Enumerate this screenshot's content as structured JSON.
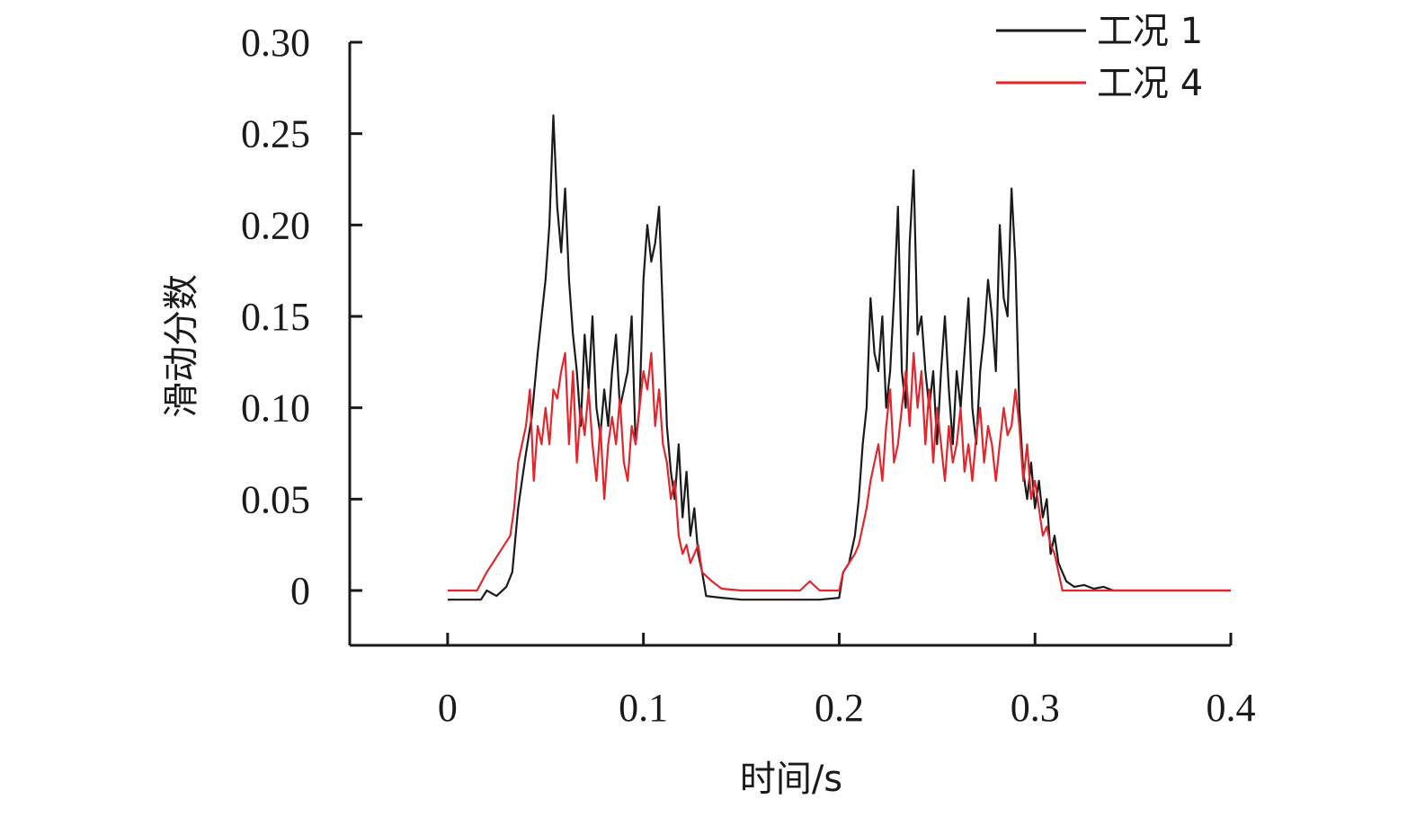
{
  "chart_data": {
    "type": "line",
    "title": "",
    "xlabel": "时间/s",
    "ylabel": "滑动分数",
    "xlim": [
      -0.05,
      0.4
    ],
    "ylim": [
      -0.03,
      0.3
    ],
    "x_ticks": [
      0,
      0.1,
      0.2,
      0.3,
      0.4
    ],
    "x_tick_labels": [
      "0",
      "0.1",
      "0.2",
      "0.3",
      "0.4"
    ],
    "y_ticks": [
      0,
      0.05,
      0.1,
      0.15,
      0.2,
      0.25,
      0.3
    ],
    "y_tick_labels": [
      "0",
      "0.05",
      "0.10",
      "0.15",
      "0.20",
      "0.25",
      "0.30"
    ],
    "legend_position": "top-right",
    "series": [
      {
        "name": "工况 1",
        "color": "#1a1a1a",
        "x": [
          0,
          0.017,
          0.02,
          0.025,
          0.03,
          0.033,
          0.036,
          0.038,
          0.04,
          0.043,
          0.046,
          0.048,
          0.05,
          0.052,
          0.054,
          0.056,
          0.058,
          0.06,
          0.062,
          0.064,
          0.066,
          0.068,
          0.07,
          0.072,
          0.074,
          0.076,
          0.078,
          0.08,
          0.082,
          0.084,
          0.086,
          0.088,
          0.09,
          0.092,
          0.094,
          0.096,
          0.098,
          0.1,
          0.102,
          0.104,
          0.106,
          0.108,
          0.11,
          0.112,
          0.114,
          0.116,
          0.118,
          0.12,
          0.122,
          0.124,
          0.126,
          0.128,
          0.13,
          0.132,
          0.14,
          0.15,
          0.16,
          0.17,
          0.18,
          0.19,
          0.2,
          0.202,
          0.205,
          0.208,
          0.21,
          0.212,
          0.214,
          0.216,
          0.218,
          0.22,
          0.222,
          0.224,
          0.226,
          0.228,
          0.23,
          0.232,
          0.234,
          0.236,
          0.238,
          0.24,
          0.242,
          0.244,
          0.246,
          0.248,
          0.25,
          0.252,
          0.254,
          0.256,
          0.258,
          0.26,
          0.262,
          0.264,
          0.266,
          0.268,
          0.27,
          0.272,
          0.274,
          0.276,
          0.278,
          0.28,
          0.282,
          0.284,
          0.286,
          0.288,
          0.29,
          0.292,
          0.294,
          0.296,
          0.298,
          0.3,
          0.302,
          0.304,
          0.306,
          0.308,
          0.31,
          0.312,
          0.314,
          0.316,
          0.32,
          0.325,
          0.33,
          0.335,
          0.34,
          0.35,
          0.36,
          0.37,
          0.38,
          0.39,
          0.4
        ],
        "y": [
          -0.005,
          -0.005,
          0.0,
          -0.003,
          0.002,
          0.01,
          0.045,
          0.06,
          0.075,
          0.095,
          0.13,
          0.15,
          0.17,
          0.2,
          0.26,
          0.21,
          0.185,
          0.22,
          0.17,
          0.14,
          0.12,
          0.09,
          0.14,
          0.11,
          0.15,
          0.1,
          0.085,
          0.11,
          0.09,
          0.12,
          0.14,
          0.1,
          0.11,
          0.12,
          0.15,
          0.08,
          0.1,
          0.17,
          0.2,
          0.18,
          0.19,
          0.21,
          0.15,
          0.09,
          0.065,
          0.05,
          0.08,
          0.04,
          0.065,
          0.03,
          0.045,
          0.02,
          0.01,
          -0.003,
          -0.004,
          -0.005,
          -0.005,
          -0.005,
          -0.005,
          -0.005,
          -0.004,
          0.01,
          0.015,
          0.03,
          0.05,
          0.08,
          0.1,
          0.16,
          0.13,
          0.12,
          0.15,
          0.1,
          0.12,
          0.16,
          0.21,
          0.12,
          0.1,
          0.19,
          0.23,
          0.14,
          0.15,
          0.12,
          0.1,
          0.12,
          0.08,
          0.12,
          0.15,
          0.11,
          0.08,
          0.12,
          0.1,
          0.13,
          0.16,
          0.1,
          0.08,
          0.12,
          0.14,
          0.17,
          0.15,
          0.12,
          0.2,
          0.16,
          0.15,
          0.22,
          0.18,
          0.1,
          0.065,
          0.05,
          0.07,
          0.045,
          0.06,
          0.04,
          0.05,
          0.02,
          0.03,
          0.015,
          0.01,
          0.005,
          0.002,
          0.003,
          0.001,
          0.002,
          0.0,
          0.0,
          0.0,
          0.0,
          0.0,
          0.0,
          0.0
        ]
      },
      {
        "name": "工况 4",
        "color": "#e3262d",
        "x": [
          0,
          0.015,
          0.02,
          0.023,
          0.026,
          0.029,
          0.032,
          0.034,
          0.036,
          0.038,
          0.04,
          0.042,
          0.044,
          0.046,
          0.048,
          0.05,
          0.052,
          0.054,
          0.056,
          0.058,
          0.06,
          0.062,
          0.064,
          0.066,
          0.068,
          0.07,
          0.072,
          0.074,
          0.076,
          0.078,
          0.08,
          0.082,
          0.084,
          0.086,
          0.088,
          0.09,
          0.092,
          0.094,
          0.096,
          0.098,
          0.1,
          0.102,
          0.104,
          0.106,
          0.108,
          0.11,
          0.112,
          0.114,
          0.116,
          0.118,
          0.12,
          0.122,
          0.124,
          0.126,
          0.128,
          0.13,
          0.135,
          0.14,
          0.15,
          0.16,
          0.17,
          0.18,
          0.185,
          0.19,
          0.2,
          0.202,
          0.205,
          0.208,
          0.21,
          0.212,
          0.214,
          0.216,
          0.218,
          0.22,
          0.222,
          0.224,
          0.226,
          0.228,
          0.23,
          0.232,
          0.234,
          0.236,
          0.238,
          0.24,
          0.242,
          0.244,
          0.246,
          0.248,
          0.25,
          0.252,
          0.254,
          0.256,
          0.258,
          0.26,
          0.262,
          0.264,
          0.266,
          0.268,
          0.27,
          0.272,
          0.274,
          0.276,
          0.278,
          0.28,
          0.282,
          0.284,
          0.286,
          0.288,
          0.29,
          0.292,
          0.294,
          0.296,
          0.298,
          0.3,
          0.302,
          0.304,
          0.306,
          0.308,
          0.31,
          0.312,
          0.314,
          0.32,
          0.33,
          0.34,
          0.35,
          0.36,
          0.38,
          0.4
        ],
        "y": [
          0.0,
          0.0,
          0.01,
          0.015,
          0.02,
          0.025,
          0.03,
          0.045,
          0.07,
          0.08,
          0.09,
          0.11,
          0.06,
          0.09,
          0.08,
          0.1,
          0.08,
          0.11,
          0.105,
          0.12,
          0.13,
          0.08,
          0.12,
          0.07,
          0.1,
          0.085,
          0.11,
          0.08,
          0.06,
          0.09,
          0.05,
          0.08,
          0.095,
          0.08,
          0.105,
          0.07,
          0.06,
          0.09,
          0.08,
          0.1,
          0.12,
          0.11,
          0.13,
          0.09,
          0.11,
          0.08,
          0.07,
          0.05,
          0.06,
          0.03,
          0.02,
          0.025,
          0.015,
          0.02,
          0.025,
          0.01,
          0.005,
          0.001,
          0.0,
          0.0,
          0.0,
          0.0,
          0.005,
          0.0,
          0.0,
          0.01,
          0.015,
          0.02,
          0.025,
          0.035,
          0.045,
          0.06,
          0.07,
          0.08,
          0.06,
          0.09,
          0.11,
          0.07,
          0.08,
          0.1,
          0.12,
          0.09,
          0.13,
          0.1,
          0.12,
          0.08,
          0.11,
          0.07,
          0.1,
          0.08,
          0.06,
          0.09,
          0.07,
          0.08,
          0.1,
          0.065,
          0.08,
          0.06,
          0.085,
          0.1,
          0.07,
          0.09,
          0.08,
          0.06,
          0.08,
          0.1,
          0.085,
          0.09,
          0.11,
          0.09,
          0.06,
          0.08,
          0.05,
          0.06,
          0.045,
          0.03,
          0.035,
          0.025,
          0.02,
          0.01,
          0.0,
          0.0,
          0.0,
          0.0,
          0.0,
          0.0,
          0.0,
          0.0
        ]
      }
    ]
  }
}
